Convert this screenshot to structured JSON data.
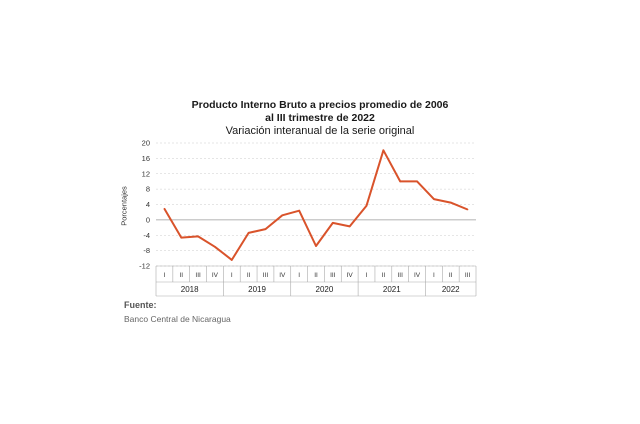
{
  "colors": {
    "line": "#d9532b",
    "grid": "#cccccc",
    "axis": "#999999"
  },
  "source": {
    "heading": "Fuente:",
    "text": "Banco Central de Nicaragua"
  },
  "chart_data": {
    "type": "line",
    "title": "Producto Interno Bruto a precios promedio de 2006",
    "title_line2": "al III trimestre de 2022",
    "subtitle": "Variación interanual de la serie original",
    "ylabel": "Porcentajes",
    "xlabel": "",
    "ylim": [
      -12,
      20
    ],
    "yticks": [
      -12,
      -8,
      -4,
      0,
      4,
      8,
      12,
      16,
      20
    ],
    "grid": "horizontal dashed",
    "categories": [
      {
        "year": "2018",
        "quarter": "I"
      },
      {
        "year": "2018",
        "quarter": "II"
      },
      {
        "year": "2018",
        "quarter": "III"
      },
      {
        "year": "2018",
        "quarter": "IV"
      },
      {
        "year": "2019",
        "quarter": "I"
      },
      {
        "year": "2019",
        "quarter": "II"
      },
      {
        "year": "2019",
        "quarter": "III"
      },
      {
        "year": "2019",
        "quarter": "IV"
      },
      {
        "year": "2020",
        "quarter": "I"
      },
      {
        "year": "2020",
        "quarter": "II"
      },
      {
        "year": "2020",
        "quarter": "III"
      },
      {
        "year": "2020",
        "quarter": "IV"
      },
      {
        "year": "2021",
        "quarter": "I"
      },
      {
        "year": "2021",
        "quarter": "II"
      },
      {
        "year": "2021",
        "quarter": "III"
      },
      {
        "year": "2021",
        "quarter": "IV"
      },
      {
        "year": "2022",
        "quarter": "I"
      },
      {
        "year": "2022",
        "quarter": "II"
      },
      {
        "year": "2022",
        "quarter": "III"
      }
    ],
    "years": [
      "2018",
      "2019",
      "2020",
      "2021",
      "2022"
    ],
    "series": [
      {
        "values": [
          2.9,
          -4.6,
          -4.3,
          -7.0,
          -10.4,
          -3.4,
          -2.4,
          1.2,
          2.4,
          -6.8,
          -0.8,
          -1.7,
          3.7,
          18.1,
          10.0,
          10.0,
          5.4,
          4.5,
          2.7
        ]
      }
    ]
  }
}
